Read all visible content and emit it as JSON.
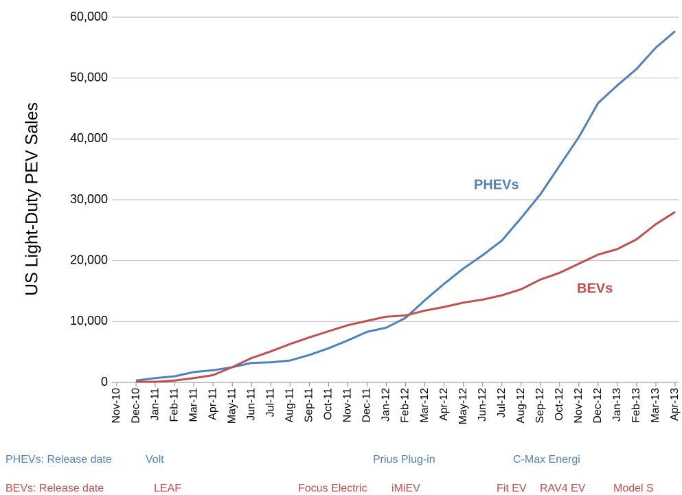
{
  "chart_data": {
    "type": "line",
    "y_label": "US Light-Duty PEV Sales",
    "categories": [
      "Nov-10",
      "Dec-10",
      "Jan-11",
      "Feb-11",
      "Mar-11",
      "Apr-11",
      "May-11",
      "Jun-11",
      "Jul-11",
      "Aug-11",
      "Sep-11",
      "Oct-11",
      "Nov-11",
      "Dec-11",
      "Jan-12",
      "Feb-12",
      "Mar-12",
      "Apr-12",
      "May-12",
      "Jun-12",
      "Jul-12",
      "Aug-12",
      "Sep-12",
      "Oct-12",
      "Nov-12",
      "Dec-12",
      "Jan-13",
      "Feb-13",
      "Mar-13",
      "Apr-13"
    ],
    "series": [
      {
        "name": "PHEVs",
        "color": "#4f81bd",
        "values": [
          null,
          300,
          700,
          1000,
          1700,
          2000,
          2500,
          3200,
          3300,
          3600,
          4500,
          5600,
          6900,
          8300,
          9000,
          10600,
          13500,
          16200,
          18700,
          20900,
          23300,
          27000,
          30900,
          35600,
          40300,
          45900,
          48800,
          51500,
          55000,
          57700
        ]
      },
      {
        "name": "BEVs",
        "color": "#c0504d",
        "values": [
          null,
          100,
          100,
          300,
          700,
          1200,
          2500,
          4000,
          5100,
          6300,
          7400,
          8400,
          9400,
          10100,
          10800,
          11000,
          11800,
          12400,
          13100,
          13600,
          14300,
          15300,
          16900,
          18000,
          19500,
          21000,
          21900,
          23500,
          26000,
          28000
        ]
      }
    ],
    "ylim": [
      0,
      60000
    ],
    "yticks": [
      0,
      {
        "value": 10000,
        "label": "10,000"
      },
      {
        "value": 20000,
        "label": "20,000"
      },
      {
        "value": 30000,
        "label": "30,000"
      },
      {
        "value": 40000,
        "label": "40,000"
      },
      {
        "value": 50000,
        "label": "50,000"
      },
      {
        "value": 60000,
        "label": "60,000"
      }
    ],
    "grid": true,
    "release_dates": [
      {
        "label": "PHEVs: Release date",
        "models": [
          "Volt",
          "Prius Plug-in",
          "C-Max Energi"
        ]
      },
      {
        "label": "BEVs: Release date",
        "models": [
          "LEAF",
          "Focus Electric",
          "iMiEV",
          "Fit EV",
          "RAV4 EV",
          "Model S"
        ]
      }
    ]
  }
}
